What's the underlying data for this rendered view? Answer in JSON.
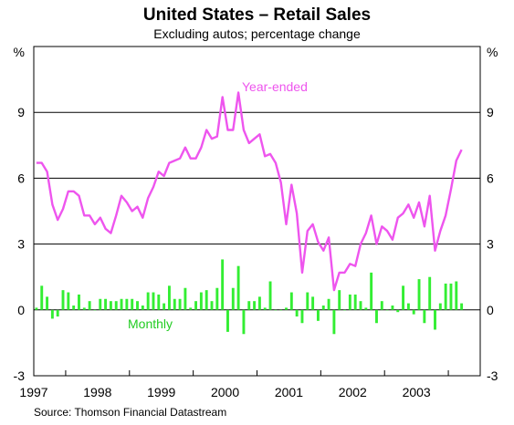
{
  "chart_data": {
    "type": "bar+line",
    "title": "United States – Retail Sales",
    "subtitle": "Excluding autos; percentage change",
    "y_unit_left": "%",
    "y_unit_right": "%",
    "ylim": [
      -3,
      12
    ],
    "yticks": [
      -3,
      0,
      3,
      6,
      9
    ],
    "grid": true,
    "x_start": 1996.5,
    "x_end": 2003.5,
    "year_labels": [
      "1997",
      "1998",
      "1999",
      "2000",
      "2001",
      "2002",
      "2003"
    ],
    "source": "Source: Thomson Financial Datastream",
    "series": [
      {
        "name": "Year-ended",
        "kind": "line",
        "color": "#ee55ee",
        "start": 1996.5,
        "step": 0.08333,
        "values": [
          6.7,
          6.7,
          6.3,
          4.8,
          4.1,
          4.6,
          5.4,
          5.4,
          5.2,
          4.3,
          4.3,
          3.9,
          4.2,
          3.7,
          3.5,
          4.3,
          5.2,
          4.9,
          4.5,
          4.7,
          4.2,
          5.1,
          5.6,
          6.3,
          6.1,
          6.7,
          6.8,
          6.9,
          7.4,
          6.9,
          6.9,
          7.4,
          8.2,
          7.8,
          7.9,
          9.7,
          8.2,
          8.2,
          9.9,
          8.2,
          7.6,
          7.8,
          8.0,
          7.0,
          7.1,
          6.7,
          5.8,
          3.9,
          5.7,
          4.4,
          1.7,
          3.6,
          3.9,
          3.1,
          2.7,
          3.3,
          0.9,
          1.7,
          1.7,
          2.1,
          2.0,
          3.0,
          3.5,
          4.3,
          3.0,
          3.8,
          3.6,
          3.2,
          4.2,
          4.4,
          4.8,
          4.2,
          4.9,
          3.8,
          5.2,
          2.7,
          3.6,
          4.3,
          5.5,
          6.8,
          7.3
        ]
      },
      {
        "name": "Monthly",
        "kind": "bar",
        "color": "#33ee33",
        "start": 1996.5,
        "step": 0.08333,
        "values": [
          0.1,
          1.1,
          0.6,
          -0.4,
          -0.3,
          0.9,
          0.8,
          0.2,
          0.7,
          0.1,
          0.4,
          0.0,
          0.5,
          0.5,
          0.4,
          0.4,
          0.5,
          0.5,
          0.5,
          0.4,
          0.2,
          0.8,
          0.8,
          0.7,
          0.3,
          1.1,
          0.5,
          0.5,
          1.0,
          0.1,
          0.4,
          0.8,
          0.9,
          0.4,
          1.0,
          2.3,
          -1.0,
          1.0,
          2.0,
          -1.1,
          0.4,
          0.4,
          0.6,
          0.1,
          1.3,
          0.0,
          0.0,
          0.1,
          0.8,
          -0.3,
          -0.6,
          0.8,
          0.6,
          -0.5,
          0.2,
          0.5,
          -1.1,
          0.9,
          0.0,
          0.7,
          0.7,
          0.4,
          0.1,
          1.7,
          -0.6,
          0.4,
          0.0,
          0.2,
          -0.1,
          1.1,
          0.3,
          -0.2,
          1.4,
          -0.6,
          1.5,
          -0.9,
          0.3,
          1.2,
          1.2,
          1.3,
          0.3
        ]
      }
    ],
    "annotations": [
      "Year-ended",
      "Monthly"
    ]
  }
}
